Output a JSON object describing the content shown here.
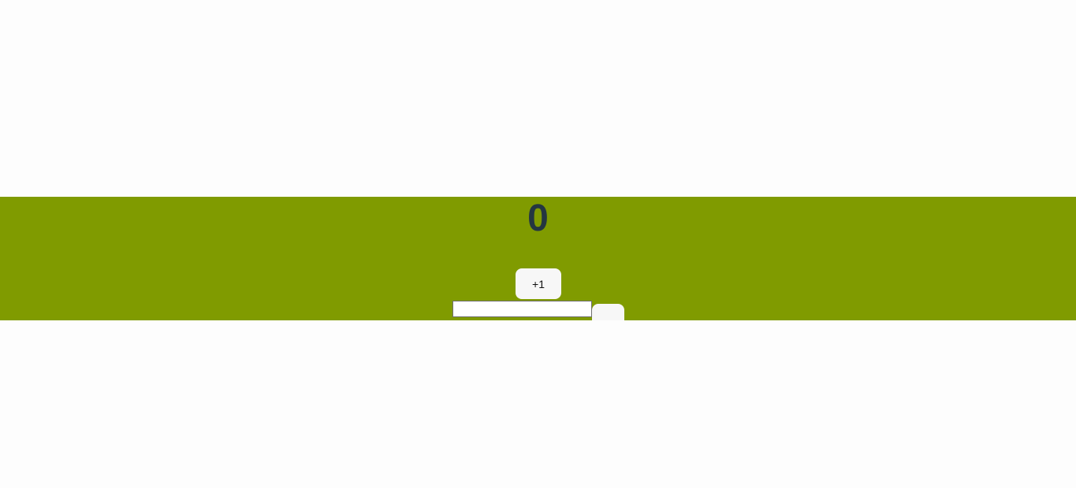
{
  "counter": {
    "value": "0"
  },
  "increment_button": {
    "label": "+1"
  },
  "amount_input": {
    "value": "",
    "placeholder": ""
  },
  "submit_button": {
    "label": ""
  },
  "colors": {
    "band": "#809b00",
    "counter_text": "#243641",
    "button_bg": "#f7f7f7",
    "page_bg": "#fdfdfd"
  }
}
